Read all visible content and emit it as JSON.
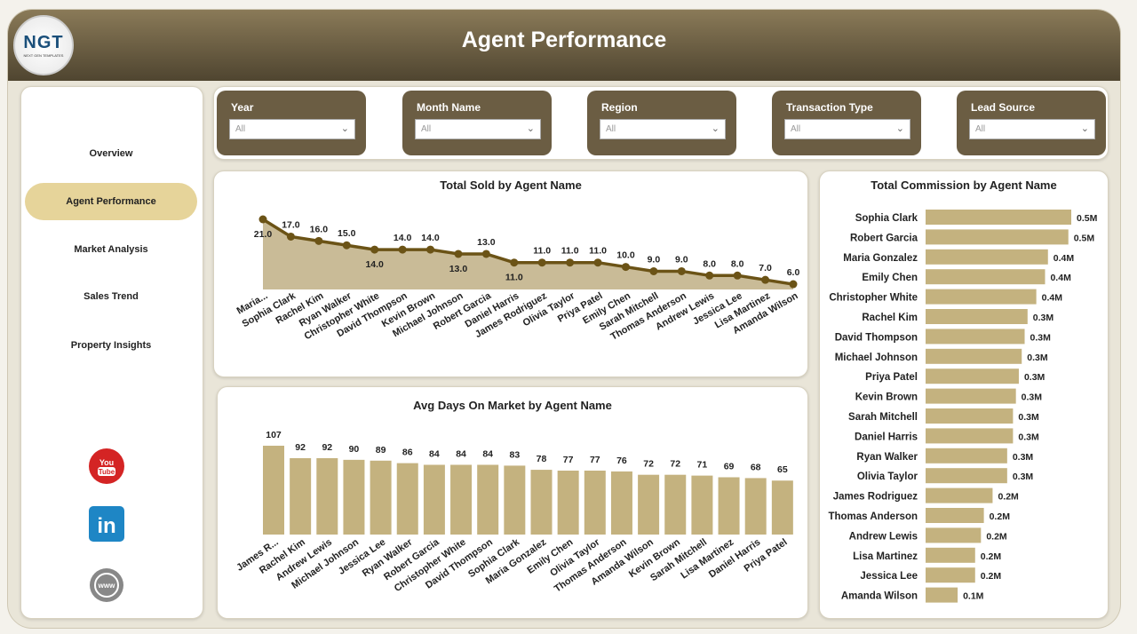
{
  "header": {
    "title": "Agent Performance",
    "logo_text": "NGT",
    "logo_sub": "NEXT GEN TEMPLATES"
  },
  "nav": [
    {
      "label": "Overview",
      "active": false
    },
    {
      "label": "Agent Performance",
      "active": true
    },
    {
      "label": "Market Analysis",
      "active": false
    },
    {
      "label": "Sales Trend",
      "active": false
    },
    {
      "label": "Property Insights",
      "active": false
    }
  ],
  "social": [
    {
      "icon": "youtube-icon",
      "label": "You Tube"
    },
    {
      "icon": "linkedin-icon",
      "label": "in"
    },
    {
      "icon": "web-icon",
      "label": "www"
    }
  ],
  "filters": [
    {
      "label": "Year",
      "value": "All"
    },
    {
      "label": "Month Name",
      "value": "All"
    },
    {
      "label": "Region",
      "value": "All"
    },
    {
      "label": "Transaction Type",
      "value": "All"
    },
    {
      "label": "Lead Source",
      "value": "All"
    }
  ],
  "colors": {
    "accent": "#c4b27f",
    "line": "#6b5316",
    "header": "#5e5238",
    "active_nav": "#e6d49a"
  },
  "chart_data": [
    {
      "type": "area",
      "title": "Total Sold by Agent Name",
      "categories": [
        "Maria...",
        "Sophia Clark",
        "Rachel Kim",
        "Ryan Walker",
        "Christopher White",
        "David Thompson",
        "Kevin Brown",
        "Michael Johnson",
        "Robert Garcia",
        "Daniel Harris",
        "James Rodriguez",
        "Olivia Taylor",
        "Priya Patel",
        "Emily Chen",
        "Sarah Mitchell",
        "Thomas Anderson",
        "Andrew Lewis",
        "Jessica Lee",
        "Lisa Martinez",
        "Amanda Wilson"
      ],
      "values": [
        21,
        17,
        16,
        15,
        14,
        14,
        14,
        13,
        13,
        11,
        11,
        11,
        11,
        10,
        9,
        9,
        8,
        8,
        7,
        6
      ],
      "labels": [
        "21.0",
        "17.0",
        "16.0",
        "15.0",
        "14.0",
        "14.0",
        "14.0",
        "13.0",
        "13.0",
        "11.0",
        "11.0",
        "11.0",
        "11.0",
        "10.0",
        "9.0",
        "9.0",
        "8.0",
        "8.0",
        "7.0",
        "6.0"
      ]
    },
    {
      "type": "bar",
      "title": "Avg Days On Market by Agent Name",
      "categories": [
        "James R...",
        "Rachel Kim",
        "Andrew Lewis",
        "Michael Johnson",
        "Jessica Lee",
        "Ryan Walker",
        "Robert Garcia",
        "Christopher White",
        "David Thompson",
        "Sophia Clark",
        "Maria Gonzalez",
        "Emily Chen",
        "Olivia Taylor",
        "Thomas Anderson",
        "Amanda Wilson",
        "Kevin Brown",
        "Sarah Mitchell",
        "Lisa Martinez",
        "Daniel Harris",
        "Priya Patel"
      ],
      "values": [
        107,
        92,
        92,
        90,
        89,
        86,
        84,
        84,
        84,
        83,
        78,
        77,
        77,
        76,
        72,
        72,
        71,
        69,
        68,
        65
      ]
    },
    {
      "type": "bar",
      "orientation": "horizontal",
      "title": "Total Commission by Agent Name",
      "categories": [
        "Sophia Clark",
        "Robert Garcia",
        "Maria Gonzalez",
        "Emily Chen",
        "Christopher White",
        "Rachel Kim",
        "David Thompson",
        "Michael Johnson",
        "Priya Patel",
        "Kevin Brown",
        "Sarah Mitchell",
        "Daniel Harris",
        "Ryan Walker",
        "Olivia Taylor",
        "James Rodriguez",
        "Thomas Anderson",
        "Andrew Lewis",
        "Lisa Martinez",
        "Jessica Lee",
        "Amanda Wilson"
      ],
      "values": [
        0.5,
        0.49,
        0.42,
        0.41,
        0.38,
        0.35,
        0.34,
        0.33,
        0.32,
        0.31,
        0.3,
        0.3,
        0.28,
        0.28,
        0.23,
        0.2,
        0.19,
        0.17,
        0.17,
        0.11
      ],
      "labels": [
        "0.5M",
        "0.5M",
        "0.4M",
        "0.4M",
        "0.4M",
        "0.3M",
        "0.3M",
        "0.3M",
        "0.3M",
        "0.3M",
        "0.3M",
        "0.3M",
        "0.3M",
        "0.3M",
        "0.2M",
        "0.2M",
        "0.2M",
        "0.2M",
        "0.2M",
        "0.1M"
      ]
    }
  ]
}
